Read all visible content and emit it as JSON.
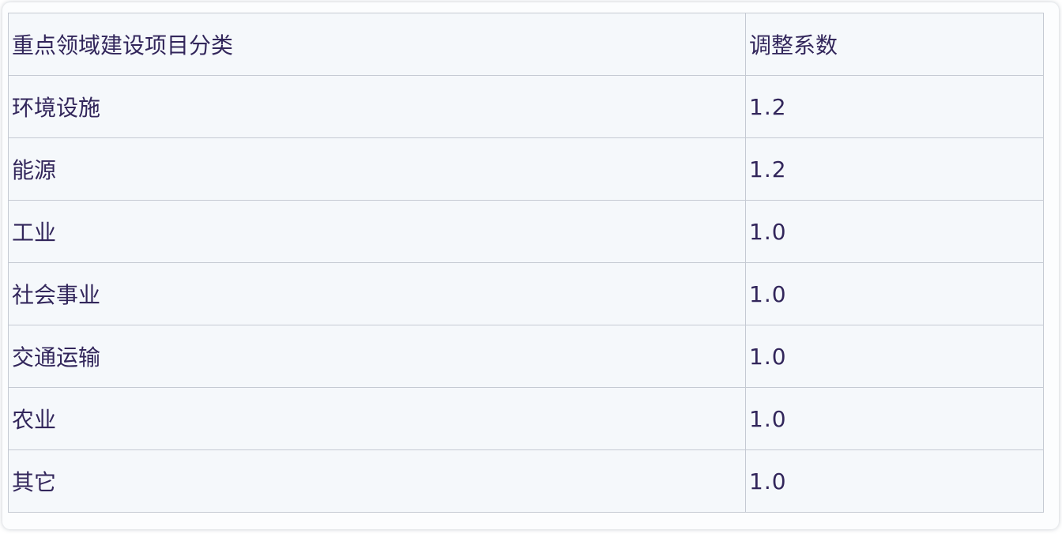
{
  "table": {
    "columns": {
      "category_label": "重点领域建设项目分类",
      "coefficient_label": "调整系数"
    },
    "rows": [
      {
        "category": "环境设施",
        "coefficient": "1.2"
      },
      {
        "category": "能源",
        "coefficient": "1.2"
      },
      {
        "category": "工业",
        "coefficient": "1.0"
      },
      {
        "category": "社会事业",
        "coefficient": "1.0"
      },
      {
        "category": "交通运输",
        "coefficient": "1.0"
      },
      {
        "category": "农业",
        "coefficient": "1.0"
      },
      {
        "category": "其它",
        "coefficient": "1.0"
      }
    ]
  },
  "colors": {
    "cell_background": "#f5f8fb",
    "border": "#c5cad3",
    "text": "#32265b",
    "card_background": "#fcfdfe"
  }
}
